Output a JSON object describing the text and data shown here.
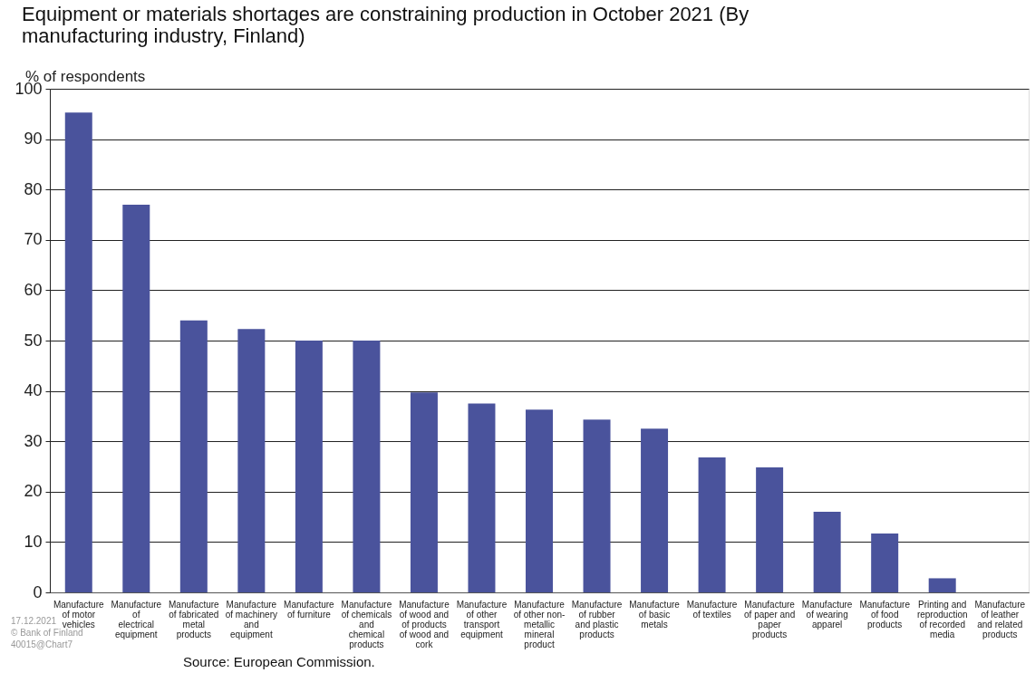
{
  "chart_data": {
    "type": "bar",
    "title": "Equipment  or materials shortages are constraining production in October 2021 (By manufacturing industry, Finland)",
    "ylabel": "% of respondents",
    "categories": [
      "Manufacture\nof motor\nvehicles",
      "Manufacture\nof\nelectrical\nequipment",
      "Manufacture\nof fabricated\nmetal\nproducts",
      "Manufacture\nof machinery\nand\nequipment",
      "Manufacture\nof furniture",
      "Manufacture\nof chemicals\nand\nchemical\nproducts",
      "Manufacture\nof wood and\nof products\nof wood and\ncork",
      "Manufacture\nof other\ntransport\nequipment",
      "Manufacture\nof other non-\nmetallic\nmineral\nproduct",
      "Manufacture\nof rubber\nand plastic\nproducts",
      "Manufacture\nof basic\nmetals",
      "Manufacture\nof textiles",
      "Manufacture\nof paper and\npaper\nproducts",
      "Manufacture\nof wearing\napparel",
      "Manufacture\nof food\nproducts",
      "Printing and\nreproduction\nof recorded\nmedia",
      "Manufacture\nof leather\nand related\nproducts"
    ],
    "values": [
      95.3,
      77,
      54,
      52.3,
      50,
      50,
      39.7,
      37.5,
      36.3,
      34.3,
      32.5,
      26.8,
      24.8,
      16,
      11.7,
      2.8,
      0
    ],
    "color": "#4a539c",
    "ylim": [
      0,
      100
    ],
    "yticks": [
      0,
      10,
      20,
      30,
      40,
      50,
      60,
      70,
      80,
      90,
      100
    ],
    "grid": "y",
    "annotations": [
      "17.12.2021",
      "© Bank of Finland",
      "40015@Chart7",
      "Source: European Commission."
    ]
  }
}
